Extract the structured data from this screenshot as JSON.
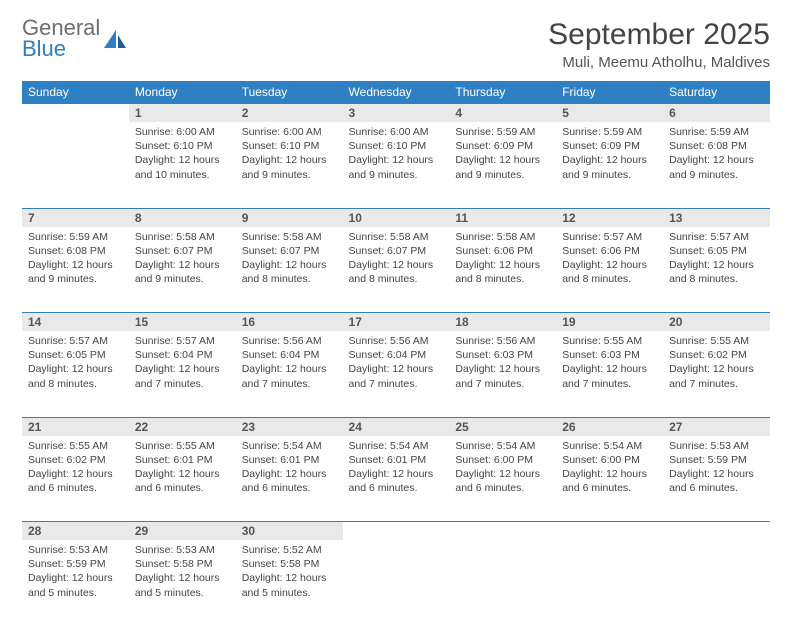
{
  "brand": {
    "general": "General",
    "blue": "Blue"
  },
  "title": "September 2025",
  "location": "Muli, Meemu Atholhu, Maldives",
  "colors": {
    "header_bg": "#2f80c2",
    "header_fg": "#ffffff",
    "daynum_bg": "#e9e9e9",
    "text": "#444444",
    "divider": "#2f80c2"
  },
  "weekdays": [
    "Sunday",
    "Monday",
    "Tuesday",
    "Wednesday",
    "Thursday",
    "Friday",
    "Saturday"
  ],
  "weeks": [
    [
      null,
      {
        "n": "1",
        "sunrise": "6:00 AM",
        "sunset": "6:10 PM",
        "daylight": "12 hours and 10 minutes."
      },
      {
        "n": "2",
        "sunrise": "6:00 AM",
        "sunset": "6:10 PM",
        "daylight": "12 hours and 9 minutes."
      },
      {
        "n": "3",
        "sunrise": "6:00 AM",
        "sunset": "6:10 PM",
        "daylight": "12 hours and 9 minutes."
      },
      {
        "n": "4",
        "sunrise": "5:59 AM",
        "sunset": "6:09 PM",
        "daylight": "12 hours and 9 minutes."
      },
      {
        "n": "5",
        "sunrise": "5:59 AM",
        "sunset": "6:09 PM",
        "daylight": "12 hours and 9 minutes."
      },
      {
        "n": "6",
        "sunrise": "5:59 AM",
        "sunset": "6:08 PM",
        "daylight": "12 hours and 9 minutes."
      }
    ],
    [
      {
        "n": "7",
        "sunrise": "5:59 AM",
        "sunset": "6:08 PM",
        "daylight": "12 hours and 9 minutes."
      },
      {
        "n": "8",
        "sunrise": "5:58 AM",
        "sunset": "6:07 PM",
        "daylight": "12 hours and 9 minutes."
      },
      {
        "n": "9",
        "sunrise": "5:58 AM",
        "sunset": "6:07 PM",
        "daylight": "12 hours and 8 minutes."
      },
      {
        "n": "10",
        "sunrise": "5:58 AM",
        "sunset": "6:07 PM",
        "daylight": "12 hours and 8 minutes."
      },
      {
        "n": "11",
        "sunrise": "5:58 AM",
        "sunset": "6:06 PM",
        "daylight": "12 hours and 8 minutes."
      },
      {
        "n": "12",
        "sunrise": "5:57 AM",
        "sunset": "6:06 PM",
        "daylight": "12 hours and 8 minutes."
      },
      {
        "n": "13",
        "sunrise": "5:57 AM",
        "sunset": "6:05 PM",
        "daylight": "12 hours and 8 minutes."
      }
    ],
    [
      {
        "n": "14",
        "sunrise": "5:57 AM",
        "sunset": "6:05 PM",
        "daylight": "12 hours and 8 minutes."
      },
      {
        "n": "15",
        "sunrise": "5:57 AM",
        "sunset": "6:04 PM",
        "daylight": "12 hours and 7 minutes."
      },
      {
        "n": "16",
        "sunrise": "5:56 AM",
        "sunset": "6:04 PM",
        "daylight": "12 hours and 7 minutes."
      },
      {
        "n": "17",
        "sunrise": "5:56 AM",
        "sunset": "6:04 PM",
        "daylight": "12 hours and 7 minutes."
      },
      {
        "n": "18",
        "sunrise": "5:56 AM",
        "sunset": "6:03 PM",
        "daylight": "12 hours and 7 minutes."
      },
      {
        "n": "19",
        "sunrise": "5:55 AM",
        "sunset": "6:03 PM",
        "daylight": "12 hours and 7 minutes."
      },
      {
        "n": "20",
        "sunrise": "5:55 AM",
        "sunset": "6:02 PM",
        "daylight": "12 hours and 7 minutes."
      }
    ],
    [
      {
        "n": "21",
        "sunrise": "5:55 AM",
        "sunset": "6:02 PM",
        "daylight": "12 hours and 6 minutes."
      },
      {
        "n": "22",
        "sunrise": "5:55 AM",
        "sunset": "6:01 PM",
        "daylight": "12 hours and 6 minutes."
      },
      {
        "n": "23",
        "sunrise": "5:54 AM",
        "sunset": "6:01 PM",
        "daylight": "12 hours and 6 minutes."
      },
      {
        "n": "24",
        "sunrise": "5:54 AM",
        "sunset": "6:01 PM",
        "daylight": "12 hours and 6 minutes."
      },
      {
        "n": "25",
        "sunrise": "5:54 AM",
        "sunset": "6:00 PM",
        "daylight": "12 hours and 6 minutes."
      },
      {
        "n": "26",
        "sunrise": "5:54 AM",
        "sunset": "6:00 PM",
        "daylight": "12 hours and 6 minutes."
      },
      {
        "n": "27",
        "sunrise": "5:53 AM",
        "sunset": "5:59 PM",
        "daylight": "12 hours and 6 minutes."
      }
    ],
    [
      {
        "n": "28",
        "sunrise": "5:53 AM",
        "sunset": "5:59 PM",
        "daylight": "12 hours and 5 minutes."
      },
      {
        "n": "29",
        "sunrise": "5:53 AM",
        "sunset": "5:58 PM",
        "daylight": "12 hours and 5 minutes."
      },
      {
        "n": "30",
        "sunrise": "5:52 AM",
        "sunset": "5:58 PM",
        "daylight": "12 hours and 5 minutes."
      },
      null,
      null,
      null,
      null
    ]
  ],
  "labels": {
    "sunrise_prefix": "Sunrise: ",
    "sunset_prefix": "Sunset: ",
    "daylight_prefix": "Daylight: "
  }
}
